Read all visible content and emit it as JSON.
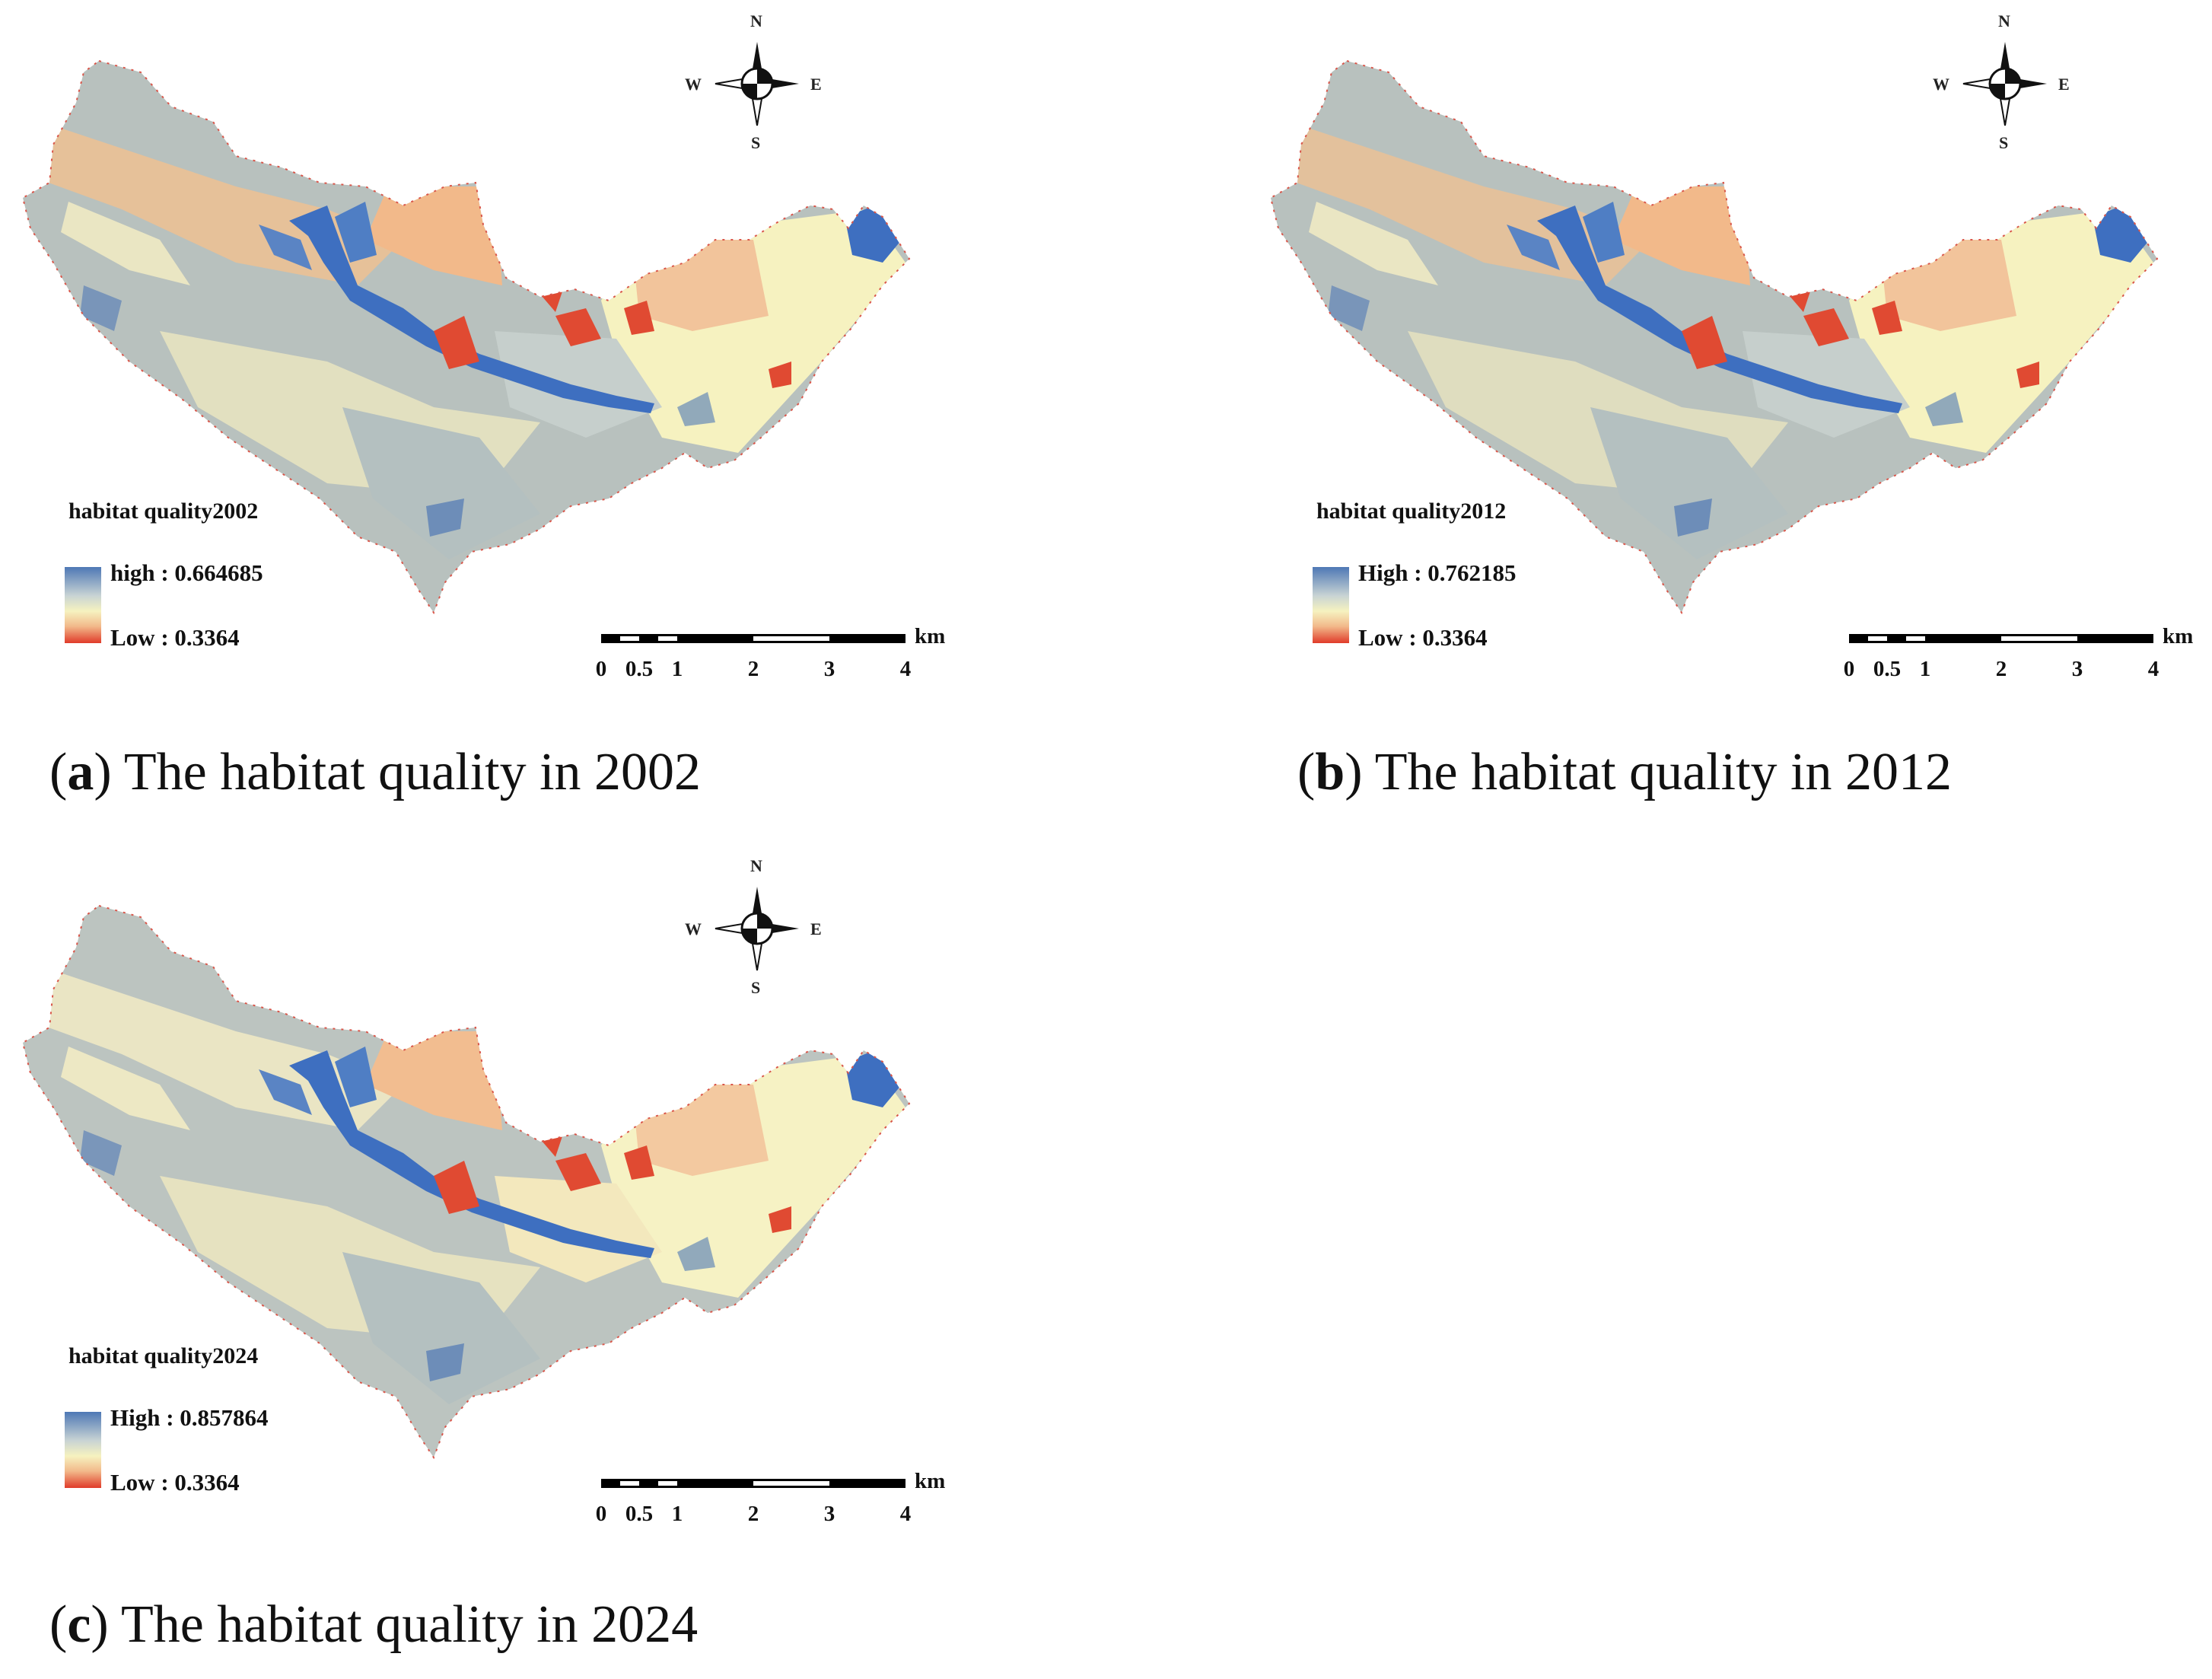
{
  "panels": [
    {
      "id": "a",
      "legend_title": "habitat quality2002",
      "legend_high": "high : 0.664685",
      "legend_low": "Low : 0.3364",
      "caption_letter": "a",
      "caption_text": " The habitat quality in 2002"
    },
    {
      "id": "b",
      "legend_title": "habitat quality2012",
      "legend_high": "High : 0.762185",
      "legend_low": "Low : 0.3364",
      "caption_letter": "b",
      "caption_text": " The habitat quality in 2012"
    },
    {
      "id": "c",
      "legend_title": "habitat quality2024",
      "legend_high": "High : 0.857864",
      "legend_low": "Low : 0.3364",
      "caption_letter": "c",
      "caption_text": " The habitat quality in 2024"
    }
  ],
  "compass": {
    "n": "N",
    "s": "S",
    "e": "E",
    "w": "W"
  },
  "scale": {
    "ticks": [
      "0",
      "0.5",
      "1",
      "2",
      "3",
      "4"
    ],
    "unit": "km"
  },
  "colors": {
    "high": "#4e78b5",
    "mid": "#f6f2c0",
    "low": "#e03b2a",
    "gray": "#b7c0bd",
    "orange": "#f2b98a"
  }
}
